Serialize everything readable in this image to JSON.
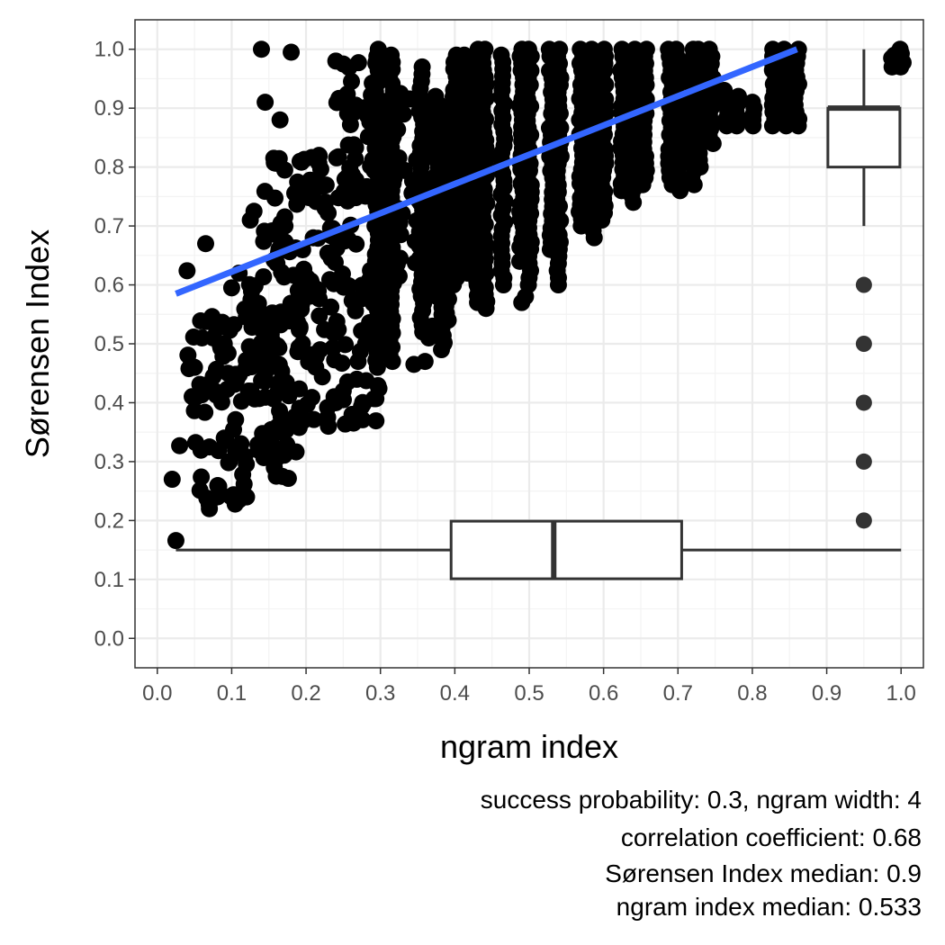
{
  "chart_data": {
    "type": "scatter",
    "title": "",
    "xlabel": "ngram index",
    "ylabel": "Sørensen Index",
    "xlim": [
      -0.03,
      1.03
    ],
    "ylim": [
      -0.05,
      1.05
    ],
    "x_ticks": [
      "0.0",
      "0.1",
      "0.2",
      "0.3",
      "0.4",
      "0.5",
      "0.6",
      "0.7",
      "0.8",
      "0.9",
      "1.0"
    ],
    "y_ticks": [
      "0.0",
      "0.1",
      "0.2",
      "0.3",
      "0.4",
      "0.5",
      "0.6",
      "0.7",
      "0.8",
      "0.9",
      "1.0"
    ],
    "grid": true,
    "legend": "none",
    "colors": {
      "points": "#000000",
      "fit_line": "#3366ff",
      "box_stroke": "#333333",
      "grid_major": "#ebebeb",
      "panel_border": "#333333"
    },
    "fit_line": {
      "x": [
        0.025,
        0.86
      ],
      "y": [
        0.585,
        1.0
      ]
    },
    "x_boxplot": {
      "y_position": 0.15,
      "min": 0.025,
      "q1": 0.395,
      "median": 0.533,
      "q3": 0.705,
      "max": 1.0
    },
    "y_boxplot": {
      "x_position": 0.95,
      "min": 0.7,
      "q1": 0.8,
      "median": 0.9,
      "q3": 0.9,
      "max": 1.0,
      "outliers": [
        0.6,
        0.5,
        0.4,
        0.3,
        0.2
      ]
    },
    "point_columns": [
      {
        "x": 0.295,
        "y_min": 0.46,
        "y_max": 1.0
      },
      {
        "x": 0.315,
        "y_min": 0.47,
        "y_max": 0.99
      },
      {
        "x": 0.355,
        "y_min": 0.52,
        "y_max": 0.97
      },
      {
        "x": 0.375,
        "y_min": 0.58,
        "y_max": 0.92
      },
      {
        "x": 0.385,
        "y_min": 0.49,
        "y_max": 0.86
      },
      {
        "x": 0.39,
        "y_min": 0.54,
        "y_max": 0.9
      },
      {
        "x": 0.4,
        "y_min": 0.6,
        "y_max": 0.99
      },
      {
        "x": 0.415,
        "y_min": 0.62,
        "y_max": 0.99
      },
      {
        "x": 0.43,
        "y_min": 0.57,
        "y_max": 1.0
      },
      {
        "x": 0.44,
        "y_min": 0.56,
        "y_max": 1.0
      },
      {
        "x": 0.465,
        "y_min": 0.6,
        "y_max": 0.99
      },
      {
        "x": 0.49,
        "y_min": 0.64,
        "y_max": 1.0
      },
      {
        "x": 0.5,
        "y_min": 0.6,
        "y_max": 1.0
      },
      {
        "x": 0.53,
        "y_min": 0.66,
        "y_max": 1.0
      },
      {
        "x": 0.54,
        "y_min": 0.6,
        "y_max": 1.0
      },
      {
        "x": 0.57,
        "y_min": 0.7,
        "y_max": 1.0
      },
      {
        "x": 0.585,
        "y_min": 0.68,
        "y_max": 1.0
      },
      {
        "x": 0.6,
        "y_min": 0.71,
        "y_max": 1.0
      },
      {
        "x": 0.625,
        "y_min": 0.76,
        "y_max": 1.0
      },
      {
        "x": 0.64,
        "y_min": 0.74,
        "y_max": 1.0
      },
      {
        "x": 0.655,
        "y_min": 0.77,
        "y_max": 1.0
      },
      {
        "x": 0.69,
        "y_min": 0.77,
        "y_max": 1.0
      },
      {
        "x": 0.7,
        "y_min": 0.76,
        "y_max": 1.0
      },
      {
        "x": 0.72,
        "y_min": 0.77,
        "y_max": 1.0
      },
      {
        "x": 0.73,
        "y_min": 0.8,
        "y_max": 1.0
      },
      {
        "x": 0.745,
        "y_min": 0.84,
        "y_max": 1.0
      },
      {
        "x": 0.765,
        "y_min": 0.87,
        "y_max": 0.93
      },
      {
        "x": 0.78,
        "y_min": 0.87,
        "y_max": 0.92
      },
      {
        "x": 0.8,
        "y_min": 0.87,
        "y_max": 0.91
      },
      {
        "x": 0.83,
        "y_min": 0.87,
        "y_max": 1.0
      },
      {
        "x": 0.845,
        "y_min": 0.87,
        "y_max": 1.0
      },
      {
        "x": 0.86,
        "y_min": 0.87,
        "y_max": 1.0
      },
      {
        "x": 1.0,
        "y_min": 0.97,
        "y_max": 1.0
      },
      {
        "x": 0.99,
        "y_min": 0.97,
        "y_max": 0.99
      }
    ],
    "point_clusters": [
      {
        "x_min": 0.04,
        "x_max": 0.1,
        "y_min": 0.38,
        "y_max": 0.55
      },
      {
        "x_min": 0.1,
        "x_max": 0.17,
        "y_min": 0.3,
        "y_max": 0.56
      },
      {
        "x_min": 0.14,
        "x_max": 0.2,
        "y_min": 0.27,
        "y_max": 0.45
      },
      {
        "x_min": 0.12,
        "x_max": 0.2,
        "y_min": 0.48,
        "y_max": 0.68
      },
      {
        "x_min": 0.14,
        "x_max": 0.2,
        "y_min": 0.68,
        "y_max": 0.82
      },
      {
        "x_min": 0.19,
        "x_max": 0.3,
        "y_min": 0.36,
        "y_max": 0.62
      },
      {
        "x_min": 0.2,
        "x_max": 0.29,
        "y_min": 0.58,
        "y_max": 0.82
      },
      {
        "x_min": 0.24,
        "x_max": 0.3,
        "y_min": 0.78,
        "y_max": 0.98
      },
      {
        "x_min": 0.3,
        "x_max": 0.37,
        "y_min": 0.6,
        "y_max": 0.93
      },
      {
        "x_min": 0.05,
        "x_max": 0.12,
        "y_min": 0.22,
        "y_max": 0.34
      }
    ],
    "points": [
      [
        0.025,
        0.166
      ],
      [
        0.02,
        0.27
      ],
      [
        0.03,
        0.327
      ],
      [
        0.07,
        0.22
      ],
      [
        0.065,
        0.67
      ],
      [
        0.04,
        0.624
      ],
      [
        0.045,
        0.463
      ],
      [
        0.14,
        1.0
      ],
      [
        0.18,
        0.995
      ],
      [
        0.145,
        0.91
      ],
      [
        0.165,
        0.88
      ],
      [
        0.13,
        0.725
      ],
      [
        0.125,
        0.71
      ],
      [
        0.1,
        0.595
      ],
      [
        0.11,
        0.62
      ],
      [
        0.09,
        0.34
      ],
      [
        0.11,
        0.235
      ],
      [
        0.12,
        0.24
      ],
      [
        0.24,
        0.98
      ],
      [
        0.25,
        0.975
      ],
      [
        0.26,
        0.9
      ],
      [
        0.345,
        0.465
      ],
      [
        0.36,
        0.47
      ],
      [
        0.385,
        0.5
      ],
      [
        0.365,
        0.51
      ],
      [
        0.37,
        0.53
      ],
      [
        0.44,
        0.57
      ],
      [
        0.49,
        0.57
      ],
      [
        0.495,
        0.58
      ],
      [
        0.43,
        0.6
      ],
      [
        0.23,
        0.36
      ],
      [
        0.24,
        0.4
      ],
      [
        0.25,
        0.42
      ],
      [
        0.27,
        0.47
      ],
      [
        0.28,
        0.5
      ],
      [
        0.075,
        0.51
      ],
      [
        0.06,
        0.51
      ],
      [
        0.05,
        0.46
      ],
      [
        0.09,
        0.5
      ],
      [
        0.095,
        0.45
      ]
    ]
  },
  "captions": [
    "success probability: 0.3, ngram width: 4",
    "correlation coefficient: 0.68",
    "Sørensen Index median: 0.9",
    "ngram index median: 0.533"
  ]
}
